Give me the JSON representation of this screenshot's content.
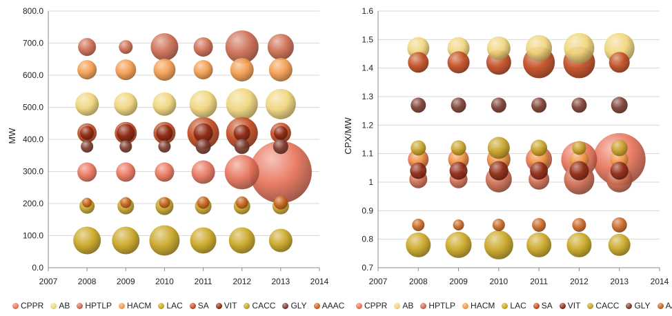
{
  "series_colors": {
    "CPPR": "#e8735a",
    "AB": "#f0d57a",
    "HPTLP": "#cc6a4e",
    "HACM": "#f29a4a",
    "LAC": "#c9a520",
    "SA": "#c24a1f",
    "VIT": "#8e2a16",
    "CACC": "#c5a227",
    "GLY": "#7a3b2e",
    "AAAC": "#c8641e"
  },
  "chart_data": [
    {
      "type": "scatter",
      "title": "",
      "xlabel": "",
      "ylabel": "MW",
      "xlim": [
        2007,
        2014
      ],
      "ylim": [
        0,
        800
      ],
      "xticks": [
        "2007",
        "2008",
        "2009",
        "2010",
        "2011",
        "2012",
        "2013",
        "2014"
      ],
      "yticks": [
        "0.0",
        "100.0",
        "200.0",
        "300.0",
        "400.0",
        "500.0",
        "600.0",
        "700.0",
        "800.0"
      ],
      "grid": "horizontal",
      "legend_position": "bottom",
      "x": [
        2008,
        2009,
        2010,
        2011,
        2012,
        2013
      ],
      "series": [
        {
          "name": "CPPR",
          "y": [
            298,
            298,
            298,
            298,
            298,
            298
          ],
          "size": [
            14,
            14,
            14,
            17,
            25,
            45
          ]
        },
        {
          "name": "AB",
          "y": [
            510,
            510,
            510,
            510,
            510,
            510
          ],
          "size": [
            17,
            17,
            17,
            20,
            23,
            22
          ]
        },
        {
          "name": "HPTLP",
          "y": [
            688,
            688,
            688,
            688,
            688,
            688
          ],
          "size": [
            13,
            10,
            20,
            14,
            24,
            19
          ]
        },
        {
          "name": "HACM",
          "y": [
            617,
            617,
            617,
            617,
            617,
            617
          ],
          "size": [
            14,
            15,
            16,
            14,
            17,
            17
          ]
        },
        {
          "name": "LAC",
          "y": [
            85,
            85,
            85,
            85,
            85,
            85
          ],
          "size": [
            20,
            20,
            22,
            19,
            19,
            17
          ]
        },
        {
          "name": "SA",
          "y": [
            420,
            420,
            420,
            420,
            420,
            420
          ],
          "size": [
            14,
            16,
            16,
            23,
            23,
            15
          ]
        },
        {
          "name": "VIT",
          "y": [
            420,
            420,
            420,
            420,
            420,
            420
          ],
          "size": [
            10,
            13,
            12,
            14,
            12,
            10
          ]
        },
        {
          "name": "CACC",
          "y": [
            192,
            192,
            192,
            192,
            192,
            192
          ],
          "size": [
            11,
            12,
            13,
            12,
            12,
            12
          ]
        },
        {
          "name": "GLY",
          "y": [
            378,
            378,
            378,
            378,
            378,
            378
          ],
          "size": [
            9,
            9,
            9,
            11,
            11,
            11
          ]
        },
        {
          "name": "AAAC",
          "y": [
            203,
            203,
            203,
            203,
            203,
            203
          ],
          "size": [
            7,
            8,
            8,
            9,
            9,
            10
          ]
        }
      ]
    },
    {
      "type": "scatter",
      "title": "",
      "xlabel": "",
      "ylabel": "CPX/MW",
      "xlim": [
        2007,
        2014
      ],
      "ylim": [
        0.7,
        1.6
      ],
      "xticks": [
        "2007",
        "2008",
        "2009",
        "2010",
        "2011",
        "2012",
        "2013",
        "2014"
      ],
      "yticks": [
        "0.7",
        "0.8",
        "0.9",
        "1",
        "1.1",
        "1.2",
        "1.3",
        "1.4",
        "1.5",
        "1.6"
      ],
      "grid": "horizontal",
      "legend_position": "bottom",
      "x": [
        2008,
        2009,
        2010,
        2011,
        2012,
        2013
      ],
      "series": [
        {
          "name": "CPPR",
          "y": [
            1.08,
            1.08,
            1.08,
            1.08,
            1.08,
            1.08
          ],
          "size": [
            15,
            15,
            17,
            19,
            26,
            38
          ]
        },
        {
          "name": "AB",
          "y": [
            1.47,
            1.47,
            1.47,
            1.47,
            1.47,
            1.47
          ],
          "size": [
            16,
            16,
            17,
            19,
            22,
            22
          ]
        },
        {
          "name": "HPTLP",
          "y": [
            1.01,
            1.01,
            1.01,
            1.01,
            1.01,
            1.01
          ],
          "size": [
            13,
            13,
            19,
            15,
            22,
            19
          ]
        },
        {
          "name": "HACM",
          "y": [
            1.08,
            1.08,
            1.08,
            1.08,
            1.08,
            1.08
          ],
          "size": [
            13,
            14,
            16,
            15,
            14,
            13
          ]
        },
        {
          "name": "LAC",
          "y": [
            0.78,
            0.78,
            0.78,
            0.78,
            0.78,
            0.78
          ],
          "size": [
            18,
            19,
            21,
            18,
            18,
            16
          ]
        },
        {
          "name": "SA",
          "y": [
            1.42,
            1.42,
            1.42,
            1.42,
            1.42,
            1.42
          ],
          "size": [
            15,
            16,
            18,
            23,
            23,
            15
          ]
        },
        {
          "name": "VIT",
          "y": [
            1.04,
            1.04,
            1.04,
            1.04,
            1.04,
            1.04
          ],
          "size": [
            12,
            13,
            14,
            13,
            14,
            13
          ]
        },
        {
          "name": "CACC",
          "y": [
            1.12,
            1.12,
            1.12,
            1.12,
            1.12,
            1.12
          ],
          "size": [
            11,
            11,
            16,
            12,
            10,
            12
          ]
        },
        {
          "name": "GLY",
          "y": [
            1.27,
            1.27,
            1.27,
            1.27,
            1.27,
            1.27
          ],
          "size": [
            11,
            11,
            11,
            11,
            11,
            12
          ]
        },
        {
          "name": "AAAC",
          "y": [
            0.85,
            0.85,
            0.85,
            0.85,
            0.85,
            0.85
          ],
          "size": [
            9,
            8,
            9,
            10,
            10,
            11
          ]
        }
      ]
    }
  ]
}
